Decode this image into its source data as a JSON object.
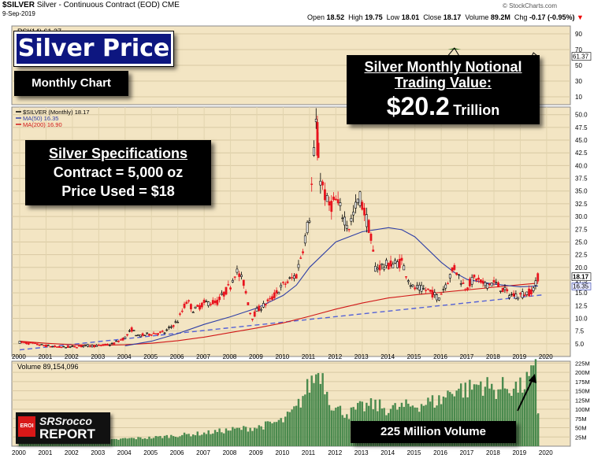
{
  "header": {
    "symbol": "$SILVER",
    "name": "Silver - Continuous Contract (EOD)",
    "exchange": "CME",
    "date": "9-Sep-2019",
    "open_label": "Open",
    "open": "18.52",
    "high_label": "High",
    "high": "19.75",
    "low_label": "Low",
    "low": "18.01",
    "close_label": "Close",
    "close": "18.17",
    "volume_label": "Volume",
    "volume": "89.2M",
    "chg_label": "Chg",
    "chg": "-0.17 (-0.95%)",
    "copyright": "© StockCharts.com"
  },
  "overlays": {
    "title": "Silver Price",
    "subtitle": "Monthly Chart",
    "notional_line1": "Silver Monthly Notional",
    "notional_line2": "Trading Value:",
    "notional_value": "$20.2",
    "notional_unit": "Trillion",
    "specs_title": "Silver Specifications",
    "specs_contract": "Contract = 5,000 oz",
    "specs_price": "Price Used = $18",
    "volume_note": "225 Million Volume",
    "logo_line1": "SRSrocco",
    "logo_line2": "REPORT",
    "logo_badge": "EROI"
  },
  "colors": {
    "background": "#f3e5c3",
    "candle_up": "#000000",
    "candle_down": "#e8141e",
    "ma50": "#2f3fa6",
    "ma200": "#d01818",
    "trendline": "#5562d6",
    "volume_bar": "#4a8a4e",
    "rsi_fill": "#3f7a2a"
  },
  "chart_data": [
    {
      "type": "line",
      "title": "RSI(14) 61.37",
      "legend": "RSI(14) 61.37",
      "y_ticks": [
        10,
        30,
        50,
        70,
        90
      ],
      "ylim": [
        0,
        100
      ],
      "last_value_label": "61.37",
      "x": [
        2015.5,
        2015.75,
        2016.0,
        2016.25,
        2016.5,
        2016.75,
        2017.0,
        2017.25,
        2017.5,
        2017.75,
        2018.0,
        2018.25,
        2018.5,
        2018.75,
        2019.0,
        2019.25,
        2019.5,
        2019.67
      ],
      "values": [
        40,
        38,
        45,
        62,
        72,
        58,
        52,
        50,
        55,
        47,
        46,
        44,
        40,
        42,
        50,
        49,
        66,
        61.37
      ]
    },
    {
      "type": "candlestick",
      "title": "$SILVER (Monthly) 18.17",
      "legend": [
        {
          "name": "$SILVER (Monthly) 18.17"
        },
        {
          "name": "MA(50) 16.35",
          "color": "#2f3fa6"
        },
        {
          "name": "MA(200) 16.90",
          "color": "#d01818"
        }
      ],
      "y_ticks": [
        5.0,
        7.5,
        10.0,
        12.5,
        15.0,
        17.5,
        20.0,
        22.5,
        25.0,
        27.5,
        30.0,
        32.5,
        35.0,
        37.5,
        40.0,
        42.5,
        45.0,
        47.5,
        50.0
      ],
      "ylim": [
        2.5,
        51.5
      ],
      "x_ticks": [
        "2000",
        "2001",
        "2002",
        "2003",
        "2004",
        "2005",
        "2006",
        "2007",
        "2008",
        "2009",
        "2010",
        "2011",
        "2012",
        "2013",
        "2014",
        "2015",
        "2016",
        "2017",
        "2018",
        "2019",
        "2020"
      ],
      "price_labels": [
        "18.17",
        "16.35"
      ],
      "price_path": [
        [
          2000.0,
          5.3
        ],
        [
          2000.5,
          5.0
        ],
        [
          2001.0,
          4.6
        ],
        [
          2001.5,
          4.3
        ],
        [
          2002.0,
          4.4
        ],
        [
          2002.5,
          4.6
        ],
        [
          2003.0,
          4.6
        ],
        [
          2003.5,
          4.9
        ],
        [
          2004.0,
          6.2
        ],
        [
          2004.25,
          7.8
        ],
        [
          2004.5,
          6.5
        ],
        [
          2005.0,
          7.0
        ],
        [
          2005.5,
          7.2
        ],
        [
          2006.0,
          9.5
        ],
        [
          2006.35,
          13.5
        ],
        [
          2006.6,
          11.5
        ],
        [
          2007.0,
          13.0
        ],
        [
          2007.5,
          13.2
        ],
        [
          2008.0,
          16.5
        ],
        [
          2008.2,
          19.5
        ],
        [
          2008.5,
          17.0
        ],
        [
          2008.8,
          10.0
        ],
        [
          2009.0,
          11.5
        ],
        [
          2009.5,
          13.5
        ],
        [
          2010.0,
          16.5
        ],
        [
          2010.5,
          18.5
        ],
        [
          2010.8,
          25.0
        ],
        [
          2011.0,
          30.0
        ],
        [
          2011.25,
          48.0
        ],
        [
          2011.4,
          38.0
        ],
        [
          2011.7,
          32.0
        ],
        [
          2012.0,
          33.0
        ],
        [
          2012.5,
          28.0
        ],
        [
          2012.9,
          34.0
        ],
        [
          2013.25,
          28.0
        ],
        [
          2013.5,
          20.0
        ],
        [
          2014.0,
          20.5
        ],
        [
          2014.5,
          21.0
        ],
        [
          2014.9,
          16.0
        ],
        [
          2015.5,
          15.5
        ],
        [
          2015.9,
          14.0
        ],
        [
          2016.5,
          20.0
        ],
        [
          2016.9,
          16.0
        ],
        [
          2017.3,
          18.0
        ],
        [
          2017.6,
          16.5
        ],
        [
          2018.0,
          17.0
        ],
        [
          2018.6,
          14.6
        ],
        [
          2018.9,
          14.5
        ],
        [
          2019.3,
          15.0
        ],
        [
          2019.55,
          16.0
        ],
        [
          2019.67,
          18.17
        ]
      ],
      "ma50": [
        [
          2004.0,
          4.6
        ],
        [
          2005.0,
          5.5
        ],
        [
          2006.0,
          7.0
        ],
        [
          2007.0,
          8.8
        ],
        [
          2008.0,
          10.3
        ],
        [
          2009.0,
          12.0
        ],
        [
          2010.0,
          14.5
        ],
        [
          2010.5,
          16.5
        ],
        [
          2011.0,
          20.0
        ],
        [
          2012.0,
          25.0
        ],
        [
          2013.0,
          27.0
        ],
        [
          2014.0,
          27.8
        ],
        [
          2014.5,
          27.4
        ],
        [
          2015.0,
          26.0
        ],
        [
          2016.0,
          21.0
        ],
        [
          2016.5,
          19.0
        ],
        [
          2017.0,
          17.6
        ],
        [
          2018.0,
          16.7
        ],
        [
          2019.0,
          16.2
        ],
        [
          2019.67,
          16.35
        ]
      ],
      "ma200": [
        [
          2000.0,
          5.5
        ],
        [
          2001.0,
          5.1
        ],
        [
          2002.0,
          4.8
        ],
        [
          2003.0,
          4.7
        ],
        [
          2004.0,
          4.8
        ],
        [
          2005.0,
          5.1
        ],
        [
          2006.0,
          5.6
        ],
        [
          2007.0,
          6.3
        ],
        [
          2008.0,
          7.2
        ],
        [
          2009.0,
          8.1
        ],
        [
          2010.0,
          9.1
        ],
        [
          2011.0,
          10.4
        ],
        [
          2012.0,
          11.8
        ],
        [
          2013.0,
          13.0
        ],
        [
          2014.0,
          14.0
        ],
        [
          2015.0,
          14.6
        ],
        [
          2016.0,
          15.1
        ],
        [
          2017.0,
          15.6
        ],
        [
          2018.0,
          16.1
        ],
        [
          2019.0,
          16.6
        ],
        [
          2019.67,
          16.9
        ]
      ],
      "trendline": [
        [
          2000.0,
          3.8
        ],
        [
          2019.85,
          14.6
        ]
      ]
    },
    {
      "type": "bar",
      "title": "Volume 89,154,096",
      "legend": "Volume 89,154,096",
      "y_ticks": [
        "25M",
        "50M",
        "75M",
        "100M",
        "125M",
        "150M",
        "175M",
        "200M",
        "225M"
      ],
      "ylim": [
        0,
        230
      ],
      "x_ticks": [
        "2000",
        "2001",
        "2002",
        "2003",
        "2004",
        "2005",
        "2006",
        "2007",
        "2008",
        "2009",
        "2010",
        "2011",
        "2012",
        "2013",
        "2014",
        "2015",
        "2016",
        "2017",
        "2018",
        "2019",
        "2020"
      ],
      "volume_profile_millions": [
        [
          2000.0,
          10
        ],
        [
          2001.0,
          11
        ],
        [
          2002.0,
          12
        ],
        [
          2003.0,
          14
        ],
        [
          2004.0,
          22
        ],
        [
          2005.0,
          25
        ],
        [
          2006.0,
          32
        ],
        [
          2007.0,
          38
        ],
        [
          2008.0,
          48
        ],
        [
          2009.0,
          55
        ],
        [
          2010.0,
          75
        ],
        [
          2010.5,
          110
        ],
        [
          2011.0,
          180
        ],
        [
          2011.4,
          225
        ],
        [
          2011.8,
          130
        ],
        [
          2012.0,
          110
        ],
        [
          2012.5,
          95
        ],
        [
          2013.0,
          115
        ],
        [
          2013.5,
          120
        ],
        [
          2014.0,
          108
        ],
        [
          2015.0,
          120
        ],
        [
          2016.0,
          135
        ],
        [
          2016.5,
          170
        ],
        [
          2017.0,
          165
        ],
        [
          2017.5,
          185
        ],
        [
          2018.0,
          165
        ],
        [
          2018.5,
          175
        ],
        [
          2019.0,
          170
        ],
        [
          2019.5,
          210
        ],
        [
          2019.6,
          225
        ],
        [
          2019.67,
          89
        ]
      ]
    }
  ]
}
